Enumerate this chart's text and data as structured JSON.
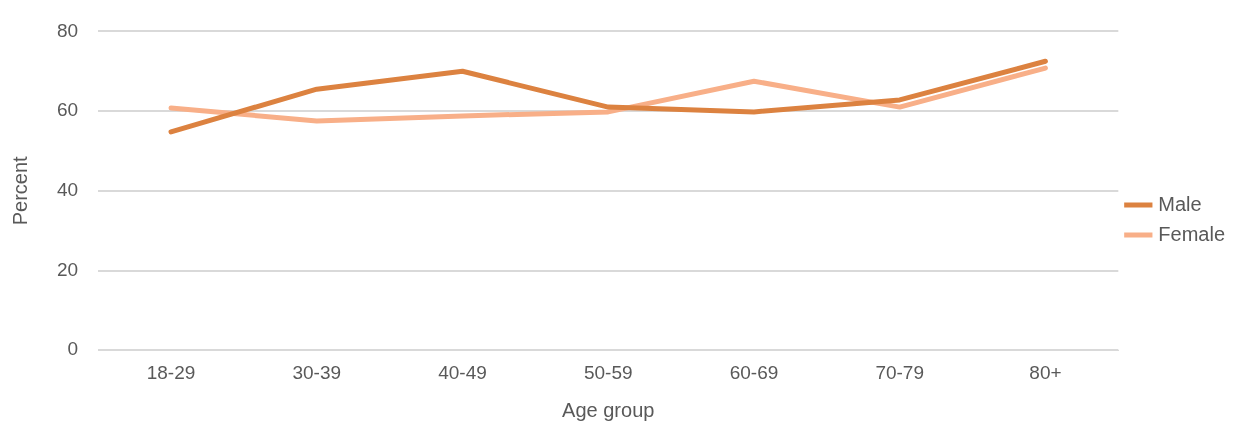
{
  "chart_data": {
    "type": "line",
    "xlabel": "Age group",
    "ylabel": "Percent",
    "categories": [
      "18-29",
      "30-39",
      "40-49",
      "50-59",
      "60-69",
      "70-79",
      "80+"
    ],
    "series": [
      {
        "name": "Male",
        "color": "#dc8240",
        "values": [
          54.8,
          65.5,
          70,
          61,
          59.8,
          62.8,
          72.5
        ]
      },
      {
        "name": "Female",
        "color": "#f8af88",
        "values": [
          60.8,
          57.5,
          58.8,
          59.8,
          67.5,
          61,
          70.8
        ]
      }
    ],
    "ylim": [
      0,
      80
    ],
    "yticks": [
      0,
      20,
      40,
      60,
      80
    ],
    "grid": "y",
    "legend": "right",
    "marker": "none",
    "line_style": "solid"
  }
}
